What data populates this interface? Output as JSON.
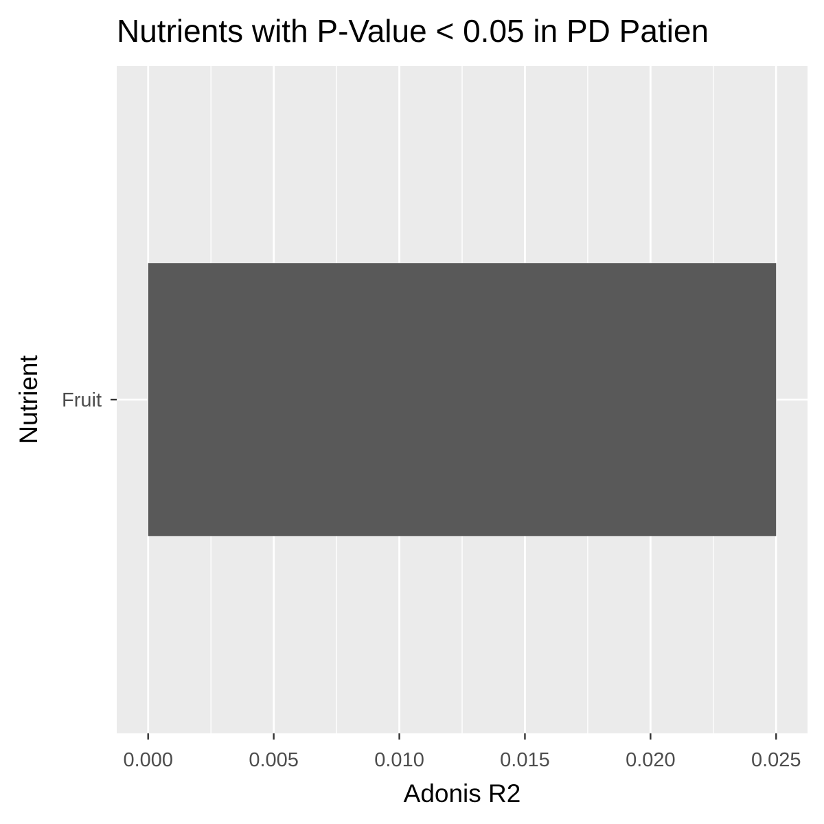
{
  "chart_data": {
    "type": "bar",
    "orientation": "horizontal",
    "title": "Nutrients with P-Value < 0.05 in PD Patien",
    "xlabel": "Adonis R2",
    "ylabel": "Nutrient",
    "categories": [
      "Fruit"
    ],
    "values": [
      0.025
    ],
    "xlim": [
      -0.00125,
      0.02625
    ],
    "xticks": [
      0.0,
      0.005,
      0.01,
      0.015,
      0.02,
      0.025
    ],
    "xtick_labels": [
      "0.000",
      "0.005",
      "0.010",
      "0.015",
      "0.020",
      "0.025"
    ],
    "grid": true,
    "legend": "none",
    "colors": {
      "bar": "#595959",
      "panel_background": "#ebebeb",
      "grid_major": "#ffffff",
      "tick_label": "#4d4d4d",
      "axis_title": "#000000"
    }
  }
}
